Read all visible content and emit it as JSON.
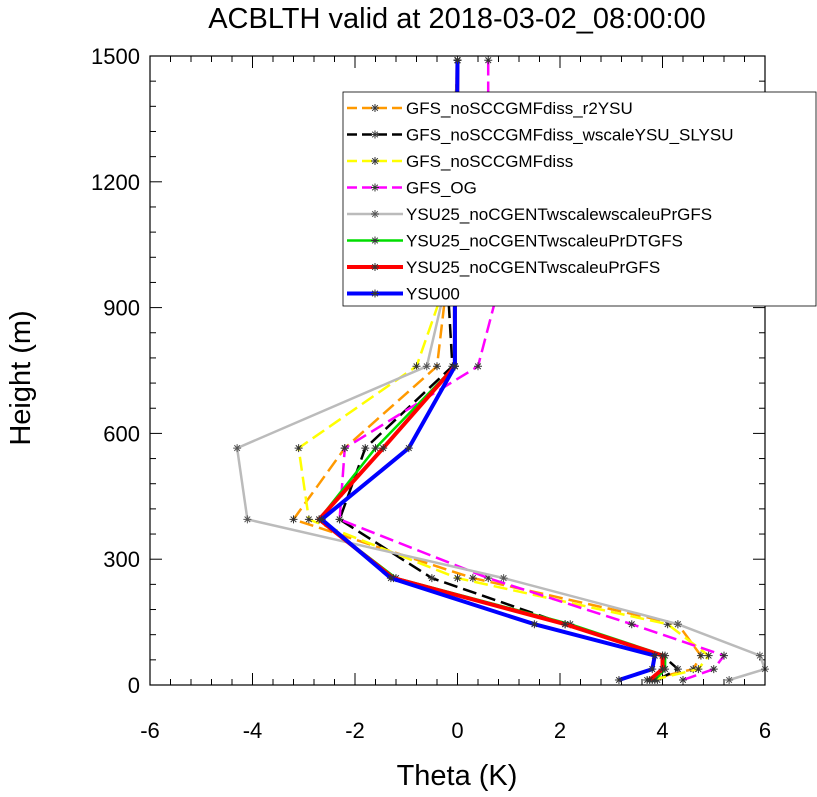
{
  "chart_data": {
    "type": "line",
    "title": "ACBLTH valid at 2018-03-02_08:00:00",
    "xlabel": "Theta (K)",
    "ylabel": "Height (m)",
    "xlim": [
      -6,
      6
    ],
    "ylim": [
      0,
      1500
    ],
    "xticks": [
      -6,
      -4,
      -2,
      0,
      2,
      4,
      6
    ],
    "yticks": [
      0,
      300,
      600,
      900,
      1200,
      1500
    ],
    "xtick_labels": [
      "-6",
      "-4",
      "-2",
      "0",
      "2",
      "4",
      "6"
    ],
    "ytick_labels": [
      "0",
      "300",
      "600",
      "900",
      "1200",
      "1500"
    ],
    "legend_position": "top-right",
    "series": [
      {
        "name": "GFS_noSCCGMFdiss_r2YSU",
        "color": "#FF9900",
        "dash": "dashed",
        "width": 2.5,
        "points": [
          [
            3.7,
            12
          ],
          [
            4.6,
            38
          ],
          [
            4.75,
            70
          ],
          [
            4.3,
            145
          ],
          [
            0.3,
            255
          ],
          [
            -3.2,
            395
          ],
          [
            -2.2,
            565
          ],
          [
            -0.4,
            760
          ],
          [
            -0.2,
            970
          ],
          [
            -0.1,
            1210
          ],
          [
            0.0,
            1490
          ]
        ]
      },
      {
        "name": "GFS_noSCCGMFdiss_wscaleYSU_SLYSU",
        "color": "#000000",
        "dash": "dashed",
        "width": 2.5,
        "points": [
          [
            3.9,
            12
          ],
          [
            4.3,
            38
          ],
          [
            4.0,
            70
          ],
          [
            2.1,
            145
          ],
          [
            -0.5,
            255
          ],
          [
            -2.3,
            395
          ],
          [
            -1.8,
            565
          ],
          [
            -0.1,
            760
          ],
          [
            -0.2,
            970
          ],
          [
            -0.1,
            1210
          ],
          [
            0.0,
            1490
          ]
        ]
      },
      {
        "name": "GFS_noSCCGMFdiss",
        "color": "#FFFF00",
        "dash": "dashed",
        "width": 2.5,
        "points": [
          [
            3.8,
            12
          ],
          [
            4.7,
            38
          ],
          [
            4.9,
            70
          ],
          [
            4.1,
            145
          ],
          [
            0.0,
            255
          ],
          [
            -2.9,
            395
          ],
          [
            -3.1,
            565
          ],
          [
            -0.8,
            760
          ],
          [
            -0.2,
            970
          ],
          [
            -0.1,
            1210
          ],
          [
            0.0,
            1490
          ]
        ]
      },
      {
        "name": "GFS_OG",
        "color": "#FF00FF",
        "dash": "dashed",
        "width": 2.5,
        "points": [
          [
            4.4,
            12
          ],
          [
            5.0,
            38
          ],
          [
            5.2,
            70
          ],
          [
            3.4,
            145
          ],
          [
            0.6,
            255
          ],
          [
            -2.3,
            395
          ],
          [
            -2.2,
            565
          ],
          [
            0.4,
            760
          ],
          [
            0.85,
            970
          ],
          [
            0.6,
            1210
          ],
          [
            0.6,
            1490
          ]
        ]
      },
      {
        "name": "YSU25_noCGENTwscalewscaleuPrGFS",
        "color": "#BBBBBB",
        "dash": "solid",
        "width": 2.5,
        "points": [
          [
            5.3,
            12
          ],
          [
            6.0,
            38
          ],
          [
            5.9,
            70
          ],
          [
            4.3,
            145
          ],
          [
            0.9,
            255
          ],
          [
            -4.1,
            395
          ],
          [
            -4.3,
            565
          ],
          [
            -0.6,
            760
          ],
          [
            -0.2,
            970
          ],
          [
            -0.05,
            1210
          ],
          [
            0.0,
            1490
          ]
        ]
      },
      {
        "name": "YSU25_noCGENTwscaleuPrDTGFS",
        "color": "#00DD00",
        "dash": "solid",
        "width": 2.5,
        "points": [
          [
            3.85,
            12
          ],
          [
            4.05,
            38
          ],
          [
            4.05,
            70
          ],
          [
            2.2,
            145
          ],
          [
            -1.2,
            255
          ],
          [
            -2.7,
            395
          ],
          [
            -1.6,
            565
          ],
          [
            -0.05,
            760
          ],
          [
            -0.05,
            970
          ],
          [
            -0.02,
            1210
          ],
          [
            0.0,
            1490
          ]
        ]
      },
      {
        "name": "YSU25_noCGENTwscaleuPrGFS",
        "color": "#FF0000",
        "dash": "solid",
        "width": 4,
        "points": [
          [
            3.75,
            12
          ],
          [
            4.0,
            38
          ],
          [
            4.0,
            70
          ],
          [
            2.1,
            145
          ],
          [
            -1.25,
            255
          ],
          [
            -2.7,
            395
          ],
          [
            -1.45,
            565
          ],
          [
            -0.05,
            760
          ],
          [
            -0.05,
            970
          ],
          [
            -0.02,
            1210
          ],
          [
            0.0,
            1490
          ]
        ]
      },
      {
        "name": "YSU00",
        "color": "#0000FF",
        "dash": "solid",
        "width": 4,
        "points": [
          [
            3.15,
            12
          ],
          [
            3.8,
            38
          ],
          [
            3.85,
            70
          ],
          [
            1.5,
            145
          ],
          [
            -1.3,
            255
          ],
          [
            -2.65,
            395
          ],
          [
            -0.95,
            565
          ],
          [
            -0.05,
            760
          ],
          [
            -0.05,
            970
          ],
          [
            -0.02,
            1210
          ],
          [
            0.0,
            1490
          ]
        ]
      }
    ]
  }
}
